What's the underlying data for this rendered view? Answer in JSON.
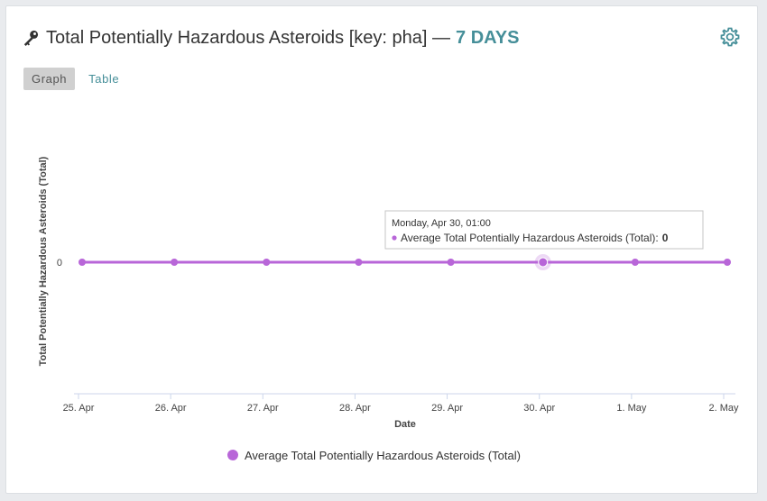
{
  "header": {
    "title": "Total Potentially Hazardous Asteroids [key: pha] —",
    "period": "7 DAYS",
    "key_icon": "key-icon",
    "settings_icon": "gear-icon"
  },
  "tabs": [
    {
      "label": "Graph",
      "active": true
    },
    {
      "label": "Table",
      "active": false
    }
  ],
  "colors": {
    "series": "#b866d8",
    "accent": "#468f99"
  },
  "tooltip": {
    "date": "Monday, Apr 30, 01:00",
    "series_label": "Average Total Potentially Hazardous Asteroids (Total):",
    "value": "0",
    "category_index": 5
  },
  "chart_data": {
    "type": "line",
    "categories": [
      "25. Apr",
      "26. Apr",
      "27. Apr",
      "28. Apr",
      "29. Apr",
      "30. Apr",
      "1. May",
      "2. May"
    ],
    "series": [
      {
        "name": "Average Total Potentially Hazardous Asteroids (Total)",
        "values": [
          0,
          0,
          0,
          0,
          0,
          0,
          0,
          0
        ]
      }
    ],
    "y_ticks": [
      "0"
    ],
    "xlabel": "Date",
    "ylabel": "Total Potentially Hazardous Asteroids (Total)",
    "legend_position": "bottom-center"
  }
}
